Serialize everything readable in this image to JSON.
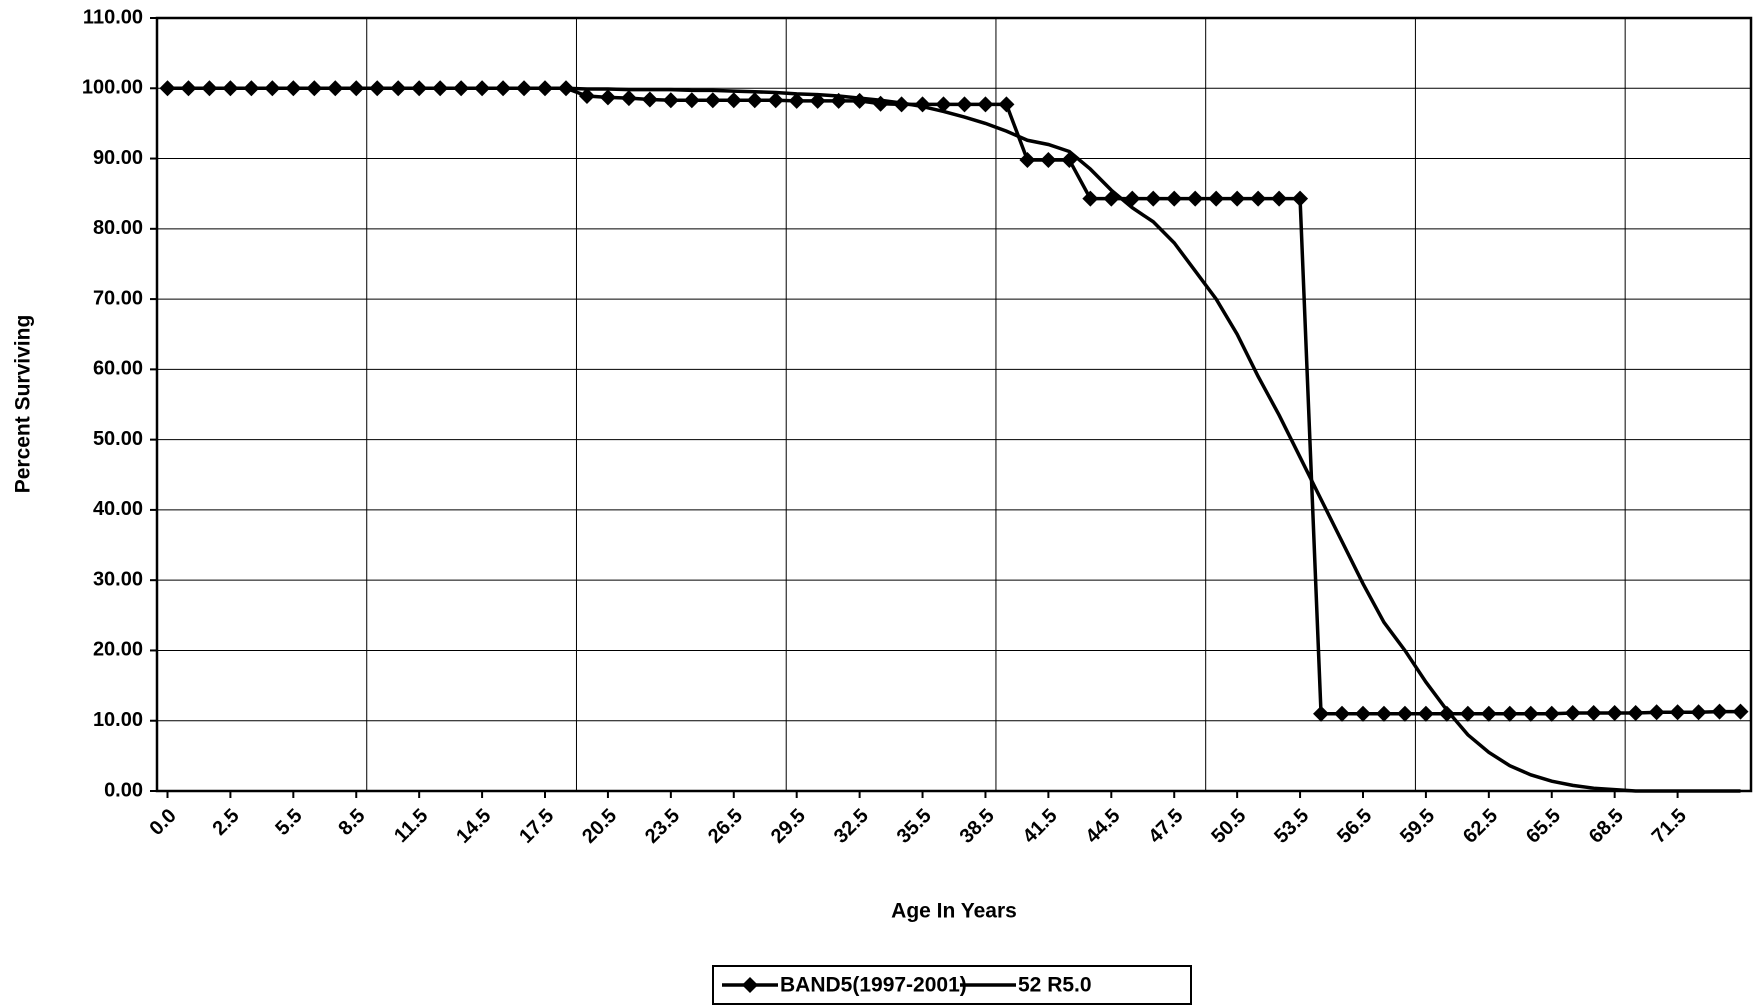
{
  "chart_data": {
    "type": "line",
    "x_label": "Age In Years",
    "y_label": "Percent Surviving",
    "categories": [
      "0.0",
      null,
      null,
      "2.5",
      null,
      null,
      "5.5",
      null,
      null,
      "8.5",
      null,
      null,
      "11.5",
      null,
      null,
      "14.5",
      null,
      null,
      "17.5",
      null,
      null,
      "20.5",
      null,
      null,
      "23.5",
      null,
      null,
      "26.5",
      null,
      null,
      "29.5",
      null,
      null,
      "32.5",
      null,
      null,
      "35.5",
      null,
      null,
      "38.5",
      null,
      null,
      "41.5",
      null,
      null,
      "44.5",
      null,
      null,
      "47.5",
      null,
      null,
      "50.5",
      null,
      null,
      "53.5",
      null,
      null,
      "56.5",
      null,
      null,
      "59.5",
      null,
      null,
      "62.5",
      null,
      null,
      "65.5",
      null,
      null,
      "68.5",
      null,
      null,
      "71.5",
      null,
      null,
      null
    ],
    "series": [
      {
        "name": "BAND5(1997-2001)",
        "color": "#000000",
        "marker": "diamond",
        "values": [
          100,
          100,
          100,
          100,
          100,
          100,
          100,
          100,
          100,
          100,
          100,
          100,
          100,
          100,
          100,
          100,
          100,
          100,
          100,
          100,
          98.9,
          98.7,
          98.6,
          98.4,
          98.3,
          98.3,
          98.3,
          98.3,
          98.3,
          98.3,
          98.2,
          98.2,
          98.2,
          98.2,
          97.8,
          97.7,
          97.7,
          97.7,
          97.7,
          97.7,
          97.7,
          89.8,
          89.8,
          89.8,
          84.3,
          84.3,
          84.3,
          84.3,
          84.3,
          84.3,
          84.3,
          84.3,
          84.3,
          84.3,
          84.3,
          11.0,
          11.0,
          11.0,
          11.0,
          11.0,
          11.0,
          11.0,
          11.0,
          11.0,
          11.0,
          11.0,
          11.0,
          11.1,
          11.1,
          11.1,
          11.1,
          11.2,
          11.2,
          11.2,
          11.3,
          11.3
        ]
      },
      {
        "name": "52 R5.0",
        "color": "#000000",
        "marker": "none",
        "values": [
          100,
          100,
          100,
          100,
          100,
          100,
          100,
          100,
          100,
          100,
          100,
          100,
          100,
          100,
          100,
          100,
          100,
          100,
          100,
          100,
          99.9,
          99.9,
          99.8,
          99.8,
          99.8,
          99.7,
          99.7,
          99.6,
          99.5,
          99.4,
          99.2,
          99.1,
          98.9,
          98.6,
          98.3,
          97.9,
          97.4,
          96.7,
          95.9,
          95.0,
          93.9,
          92.6,
          92.0,
          91.0,
          88.5,
          85.5,
          83.0,
          81.0,
          78.0,
          74.0,
          70.0,
          65.0,
          59.0,
          53.5,
          47.5,
          41.5,
          35.5,
          29.5,
          24.0,
          20.0,
          15.5,
          11.5,
          8.0,
          5.5,
          3.6,
          2.3,
          1.4,
          0.8,
          0.4,
          0.2,
          0,
          0,
          0,
          0,
          0,
          0
        ]
      }
    ],
    "ylim": [
      0,
      110
    ],
    "yticks": [
      {
        "value": 0,
        "label": "0.00"
      },
      {
        "value": 10,
        "label": "10.00"
      },
      {
        "value": 20,
        "label": "20.00"
      },
      {
        "value": 30,
        "label": "30.00"
      },
      {
        "value": 40,
        "label": "40.00"
      },
      {
        "value": 50,
        "label": "50.00"
      },
      {
        "value": 60,
        "label": "60.00"
      },
      {
        "value": 70,
        "label": "70.00"
      },
      {
        "value": 80,
        "label": "80.00"
      },
      {
        "value": 90,
        "label": "90.00"
      },
      {
        "value": 100,
        "label": "100.00"
      },
      {
        "value": 110,
        "label": "110.00"
      }
    ],
    "grid": true,
    "legend": "bottom"
  }
}
